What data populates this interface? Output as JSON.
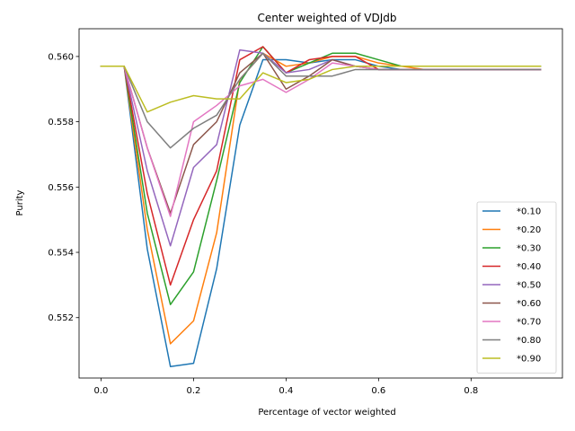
{
  "chart_data": {
    "type": "line",
    "title": "Center weighted of VDJdb",
    "xlabel": "Percentage of vector weighted",
    "ylabel": "Purity",
    "xlim": [
      -0.0475,
      0.9975
    ],
    "ylim": [
      0.55015,
      0.56085
    ],
    "xticks": [
      0.0,
      0.2,
      0.4,
      0.6,
      0.8
    ],
    "xtick_labels": [
      "0.0",
      "0.2",
      "0.4",
      "0.6",
      "0.8"
    ],
    "yticks": [
      0.552,
      0.554,
      0.556,
      0.558,
      0.56
    ],
    "ytick_labels": [
      "0.552",
      "0.554",
      "0.556",
      "0.558",
      "0.560"
    ],
    "grid": false,
    "legend_position": "lower right",
    "x": [
      0.0,
      0.05,
      0.1,
      0.15,
      0.2,
      0.25,
      0.3,
      0.35,
      0.4,
      0.45,
      0.5,
      0.55,
      0.6,
      0.65,
      0.7,
      0.75,
      0.8,
      0.85,
      0.9,
      0.95
    ],
    "series": [
      {
        "name": "*0.10",
        "color": "#1f77b4",
        "values": [
          0.5597,
          0.5597,
          0.5541,
          0.5505,
          0.5506,
          0.5535,
          0.5579,
          0.5599,
          0.5599,
          0.5598,
          0.5599,
          0.5599,
          0.5597,
          0.5596,
          0.5596,
          0.5596,
          0.5596,
          0.5596,
          0.5596,
          0.5596
        ]
      },
      {
        "name": "*0.20",
        "color": "#ff7f0e",
        "values": [
          0.5597,
          0.5597,
          0.5547,
          0.5512,
          0.5519,
          0.5546,
          0.5593,
          0.5601,
          0.5597,
          0.5598,
          0.56,
          0.56,
          0.5598,
          0.5597,
          0.5596,
          0.5596,
          0.5596,
          0.5596,
          0.5596,
          0.5596
        ]
      },
      {
        "name": "*0.30",
        "color": "#2ca02c",
        "values": [
          0.5597,
          0.5597,
          0.5552,
          0.5524,
          0.5534,
          0.5562,
          0.5592,
          0.5603,
          0.5595,
          0.5598,
          0.5601,
          0.5601,
          0.5599,
          0.5597,
          0.5597,
          0.5597,
          0.5597,
          0.5597,
          0.5597,
          0.5597
        ]
      },
      {
        "name": "*0.40",
        "color": "#d62728",
        "values": [
          0.5597,
          0.5597,
          0.5558,
          0.553,
          0.555,
          0.5565,
          0.5599,
          0.5603,
          0.5595,
          0.5599,
          0.56,
          0.56,
          0.5596,
          0.5596,
          0.5596,
          0.5596,
          0.5596,
          0.5596,
          0.5596,
          0.5596
        ]
      },
      {
        "name": "*0.50",
        "color": "#9467bd",
        "values": [
          0.5597,
          0.5597,
          0.5565,
          0.5542,
          0.5566,
          0.5573,
          0.5602,
          0.5601,
          0.5595,
          0.5596,
          0.5599,
          0.5597,
          0.5596,
          0.5596,
          0.5596,
          0.5596,
          0.5596,
          0.5596,
          0.5596,
          0.5596
        ]
      },
      {
        "name": "*0.60",
        "color": "#8c564b",
        "values": [
          0.5597,
          0.5597,
          0.5572,
          0.5552,
          0.5573,
          0.558,
          0.5595,
          0.5601,
          0.559,
          0.5594,
          0.5599,
          0.5597,
          0.5596,
          0.5596,
          0.5596,
          0.5596,
          0.5596,
          0.5596,
          0.5596,
          0.5596
        ]
      },
      {
        "name": "*0.70",
        "color": "#e377c2",
        "values": [
          0.5597,
          0.5597,
          0.5572,
          0.5551,
          0.558,
          0.5585,
          0.5591,
          0.5593,
          0.5589,
          0.5593,
          0.5598,
          0.5597,
          0.5596,
          0.5596,
          0.5596,
          0.5596,
          0.5596,
          0.5596,
          0.5596,
          0.5596
        ]
      },
      {
        "name": "*0.80",
        "color": "#7f7f7f",
        "values": [
          0.5597,
          0.5597,
          0.558,
          0.5572,
          0.5578,
          0.5582,
          0.5593,
          0.5601,
          0.5594,
          0.5594,
          0.5594,
          0.5596,
          0.5596,
          0.5596,
          0.5596,
          0.5596,
          0.5596,
          0.5596,
          0.5596,
          0.5596
        ]
      },
      {
        "name": "*0.90",
        "color": "#bcbd22",
        "values": [
          0.5597,
          0.5597,
          0.5583,
          0.5586,
          0.5588,
          0.5587,
          0.5587,
          0.5595,
          0.5592,
          0.5593,
          0.5596,
          0.5597,
          0.5597,
          0.5597,
          0.5597,
          0.5597,
          0.5597,
          0.5597,
          0.5597,
          0.5597
        ]
      }
    ]
  }
}
